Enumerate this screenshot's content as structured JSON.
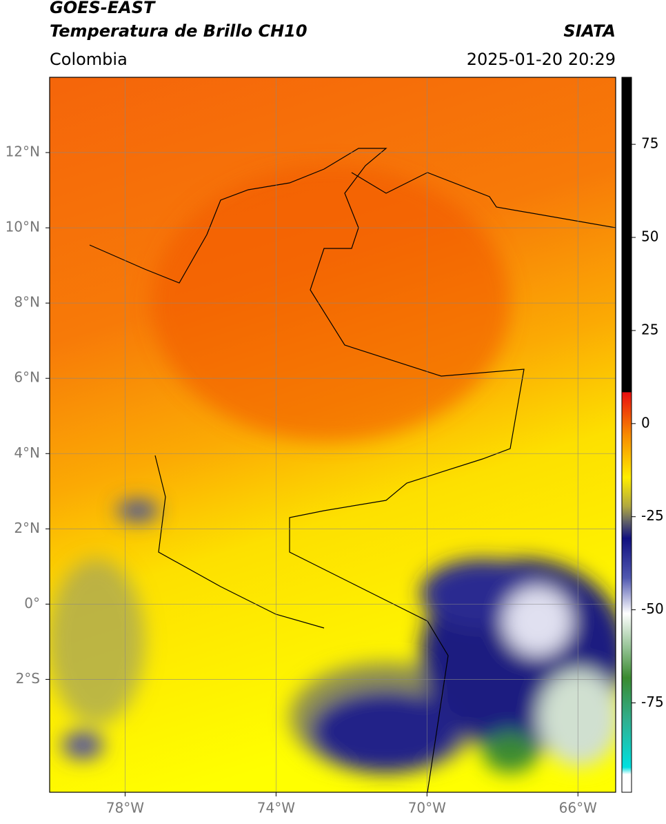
{
  "header": {
    "title": "GOES-EAST",
    "subtitle": "Temperatura de Brillo CH10",
    "source": "SIATA",
    "region": "Colombia",
    "timestamp": "2025-01-20 20:29"
  },
  "map": {
    "xlim": [
      -80,
      -65
    ],
    "ylim": [
      -5,
      14
    ],
    "xticks": [
      {
        "value": -78,
        "label": "78°W"
      },
      {
        "value": -74,
        "label": "74°W"
      },
      {
        "value": -70,
        "label": "70°W"
      },
      {
        "value": -66,
        "label": "66°W"
      }
    ],
    "yticks": [
      {
        "value": 12,
        "label": "12°N"
      },
      {
        "value": 10,
        "label": "10°N"
      },
      {
        "value": 8,
        "label": "8°N"
      },
      {
        "value": 6,
        "label": "6°N"
      },
      {
        "value": 4,
        "label": "4°N"
      },
      {
        "value": 2,
        "label": "2°N"
      },
      {
        "value": 0,
        "label": "0°"
      },
      {
        "value": -2,
        "label": "2°S"
      }
    ]
  },
  "colorbar": {
    "lim": [
      -99,
      93
    ],
    "ticks": [
      75,
      50,
      25,
      0,
      -25,
      -50,
      -75
    ]
  }
}
